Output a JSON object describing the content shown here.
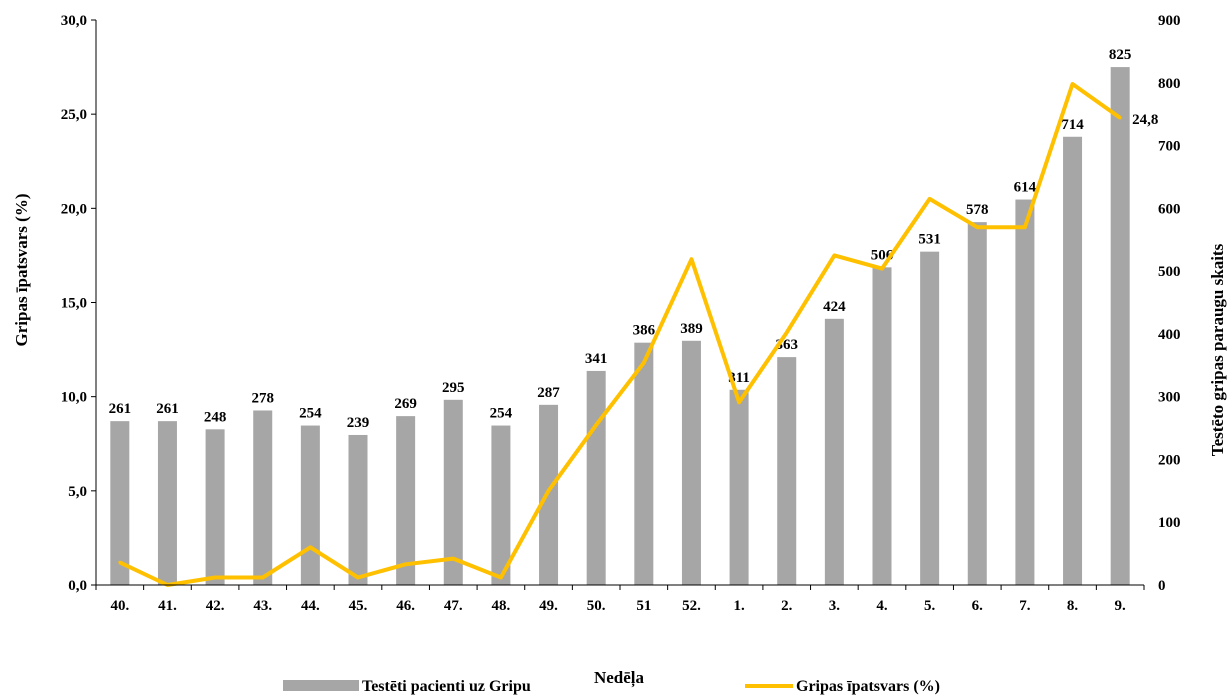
{
  "chart_data": {
    "type": "bar",
    "combo": "bar + line (dual axis)",
    "categories": [
      "40.",
      "41.",
      "42.",
      "43.",
      "44.",
      "45.",
      "46.",
      "47.",
      "48.",
      "49.",
      "50.",
      "51",
      "52.",
      "1.",
      "2.",
      "3.",
      "4.",
      "5.",
      "6.",
      "7.",
      "8.",
      "9."
    ],
    "series": [
      {
        "name": "Testēti pacienti uz Gripu",
        "type": "bar",
        "axis": "right",
        "color": "#a6a6a6",
        "values": [
          261,
          261,
          248,
          278,
          254,
          239,
          269,
          295,
          254,
          287,
          341,
          386,
          389,
          311,
          363,
          424,
          506,
          531,
          578,
          614,
          714,
          825
        ],
        "data_labels": [
          "261",
          "261",
          "248",
          "278",
          "254",
          "239",
          "269",
          "295",
          "254",
          "287",
          "341",
          "386",
          "389",
          "311",
          "363",
          "424",
          "506",
          "531",
          "578",
          "614",
          "714",
          "825"
        ]
      },
      {
        "name": "Gripas īpatsvars (%)",
        "type": "line",
        "axis": "left",
        "color": "#ffc000",
        "values": [
          1.2,
          0.0,
          0.4,
          0.4,
          2.0,
          0.4,
          1.1,
          1.4,
          0.4,
          5.0,
          8.5,
          11.8,
          17.3,
          9.7,
          13.4,
          17.5,
          16.8,
          20.5,
          19.0,
          19.0,
          26.6,
          24.8
        ],
        "end_label": "24,8"
      }
    ],
    "xlabel": "Nedēļa",
    "ylabel_left": "Gripas īpatsvars (%)",
    "ylabel_right": "Testēto gripas paraugu skaits",
    "ylim_left": [
      0,
      30
    ],
    "ylim_right": [
      0,
      900
    ],
    "yticks_left": [
      "0,0",
      "5,0",
      "10,0",
      "15,0",
      "20,0",
      "25,0",
      "30,0"
    ],
    "yticks_right": [
      "0",
      "100",
      "200",
      "300",
      "400",
      "500",
      "600",
      "700",
      "800",
      "900"
    ],
    "grid": false,
    "legend_position": "bottom"
  }
}
